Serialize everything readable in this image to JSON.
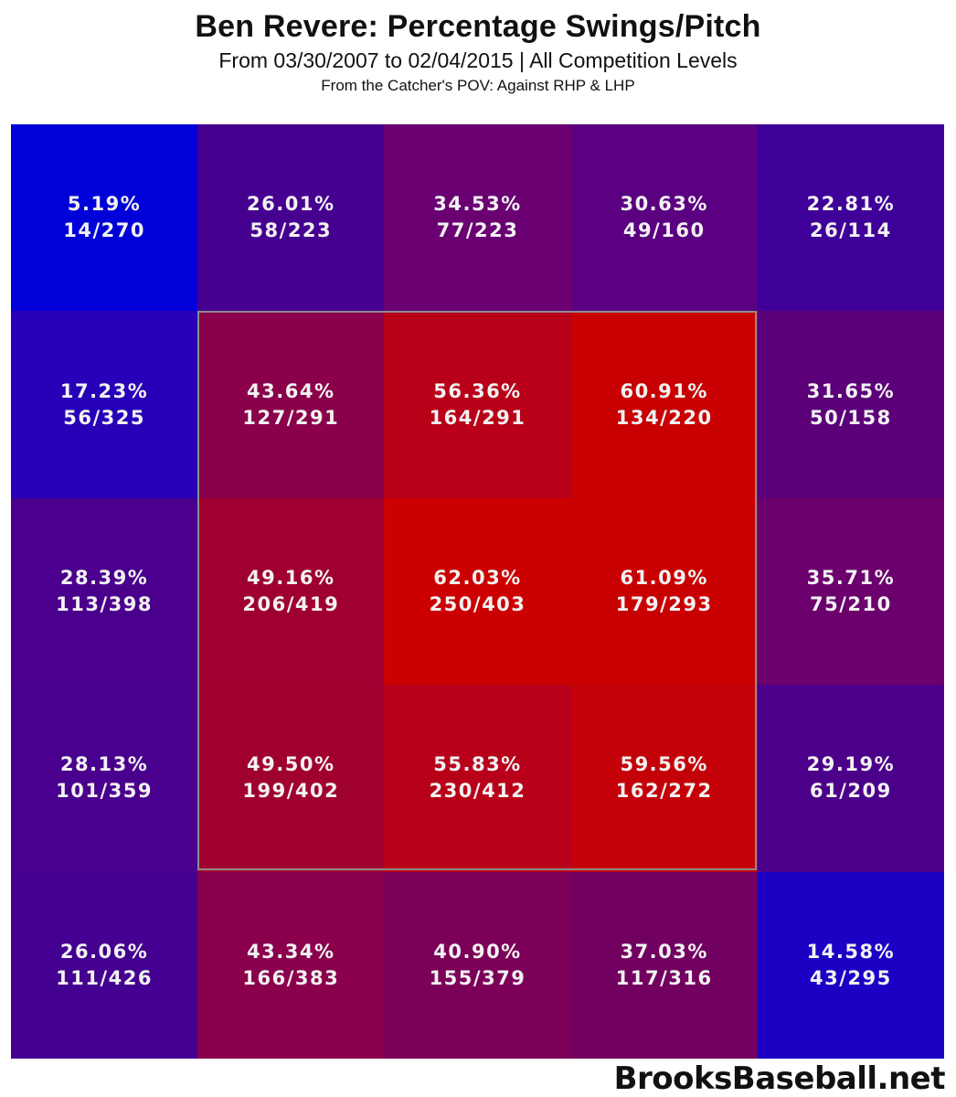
{
  "header": {
    "title": "Ben Revere: Percentage Swings/Pitch",
    "subtitle": "From 03/30/2007 to 02/04/2015 | All Competition Levels",
    "subtitle2": "From the Catcher's POV:   Against RHP & LHP"
  },
  "footer": {
    "brand": "BrooksBaseball.net"
  },
  "cells": [
    {
      "pct": "5.19%",
      "frac": "14/270",
      "color": "#0000d8"
    },
    {
      "pct": "26.01%",
      "frac": "58/223",
      "color": "#460090"
    },
    {
      "pct": "34.53%",
      "frac": "77/223",
      "color": "#6a0072"
    },
    {
      "pct": "30.63%",
      "frac": "49/160",
      "color": "#5a0080"
    },
    {
      "pct": "22.81%",
      "frac": "26/114",
      "color": "#3e0098"
    },
    {
      "pct": "17.23%",
      "frac": "56/325",
      "color": "#2800b8"
    },
    {
      "pct": "43.64%",
      "frac": "127/291",
      "color": "#8a004a"
    },
    {
      "pct": "56.36%",
      "frac": "164/291",
      "color": "#b80018"
    },
    {
      "pct": "60.91%",
      "frac": "134/220",
      "color": "#c80002"
    },
    {
      "pct": "31.65%",
      "frac": "50/158",
      "color": "#5c007a"
    },
    {
      "pct": "28.39%",
      "frac": "113/398",
      "color": "#4a008c"
    },
    {
      "pct": "49.16%",
      "frac": "206/419",
      "color": "#a00030"
    },
    {
      "pct": "62.03%",
      "frac": "250/403",
      "color": "#cc0000"
    },
    {
      "pct": "61.09%",
      "frac": "179/293",
      "color": "#c80002"
    },
    {
      "pct": "35.71%",
      "frac": "75/210",
      "color": "#6c006c"
    },
    {
      "pct": "28.13%",
      "frac": "101/359",
      "color": "#4a008e"
    },
    {
      "pct": "49.50%",
      "frac": "199/402",
      "color": "#a0002e"
    },
    {
      "pct": "55.83%",
      "frac": "230/412",
      "color": "#b8001a"
    },
    {
      "pct": "59.56%",
      "frac": "162/272",
      "color": "#c40008"
    },
    {
      "pct": "29.19%",
      "frac": "61/209",
      "color": "#4c008a"
    },
    {
      "pct": "26.06%",
      "frac": "111/426",
      "color": "#440090"
    },
    {
      "pct": "43.34%",
      "frac": "166/383",
      "color": "#8a004c"
    },
    {
      "pct": "40.90%",
      "frac": "155/379",
      "color": "#7c0058"
    },
    {
      "pct": "37.03%",
      "frac": "117/316",
      "color": "#720060"
    },
    {
      "pct": "14.58%",
      "frac": "43/295",
      "color": "#1c00c4"
    }
  ],
  "chart_data": {
    "type": "heatmap",
    "title": "Ben Revere: Percentage Swings/Pitch",
    "subtitle": "From 03/30/2007 to 02/04/2015 | All Competition Levels",
    "note": "From the Catcher's POV: Against RHP & LHP",
    "rows": 5,
    "cols": 5,
    "strike_zone": "inner 3x3 cells (rows 2-4, cols 2-4)",
    "color_scale": {
      "low": "#0000d8",
      "high": "#cc0000"
    },
    "values_pct": [
      [
        5.19,
        26.01,
        34.53,
        30.63,
        22.81
      ],
      [
        17.23,
        43.64,
        56.36,
        60.91,
        31.65
      ],
      [
        28.39,
        49.16,
        62.03,
        61.09,
        35.71
      ],
      [
        28.13,
        49.5,
        55.83,
        59.56,
        29.19
      ],
      [
        26.06,
        43.34,
        40.9,
        37.03,
        14.58
      ]
    ],
    "swings": [
      [
        14,
        58,
        77,
        49,
        26
      ],
      [
        56,
        127,
        164,
        134,
        50
      ],
      [
        113,
        206,
        250,
        179,
        75
      ],
      [
        101,
        199,
        230,
        162,
        61
      ],
      [
        111,
        166,
        155,
        117,
        43
      ]
    ],
    "pitches": [
      [
        270,
        223,
        223,
        160,
        114
      ],
      [
        325,
        291,
        291,
        220,
        158
      ],
      [
        398,
        419,
        403,
        293,
        210
      ],
      [
        359,
        402,
        412,
        272,
        209
      ],
      [
        426,
        383,
        379,
        316,
        295
      ]
    ],
    "source": "BrooksBaseball.net"
  }
}
